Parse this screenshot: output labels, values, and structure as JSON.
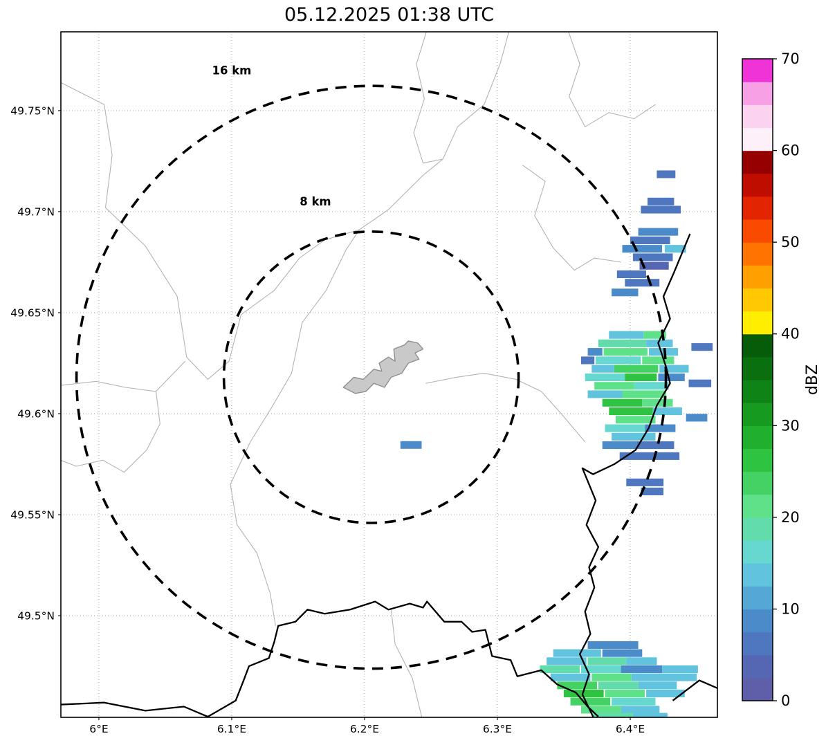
{
  "title": "05.12.2025 01:38 UTC",
  "map": {
    "extent": {
      "lon_min": 5.9714,
      "lon_max": 6.4656,
      "lat_min": 49.4497,
      "lat_max": 49.789
    },
    "x_ticks": [
      {
        "lon": 6.0,
        "label": "6°E"
      },
      {
        "lon": 6.1,
        "label": "6.1°E"
      },
      {
        "lon": 6.2,
        "label": "6.2°E"
      },
      {
        "lon": 6.3,
        "label": "6.3°E"
      },
      {
        "lon": 6.4,
        "label": "6.4°E"
      }
    ],
    "y_ticks": [
      {
        "lat": 49.5,
        "label": "49.5°N"
      },
      {
        "lat": 49.55,
        "label": "49.55°N"
      },
      {
        "lat": 49.6,
        "label": "49.6°N"
      },
      {
        "lat": 49.65,
        "label": "49.65°N"
      },
      {
        "lat": 49.7,
        "label": "49.7°N"
      },
      {
        "lat": 49.75,
        "label": "49.75°N"
      }
    ],
    "range_rings": {
      "center": {
        "lon": 6.205,
        "lat": 49.618
      },
      "items": [
        {
          "radius_km": 16,
          "label": "16 km",
          "label_lon": 6.1,
          "label_lat": 49.768
        },
        {
          "radius_km": 8,
          "label": "8 km",
          "label_lon": 6.163,
          "label_lat": 49.703
        }
      ]
    },
    "city_outline": [
      [
        6.184,
        49.613
      ],
      [
        6.192,
        49.618
      ],
      [
        6.199,
        49.617
      ],
      [
        6.207,
        49.622
      ],
      [
        6.213,
        49.621
      ],
      [
        6.211,
        49.625
      ],
      [
        6.218,
        49.628
      ],
      [
        6.223,
        49.626
      ],
      [
        6.222,
        49.632
      ],
      [
        6.23,
        49.634
      ],
      [
        6.233,
        49.636
      ],
      [
        6.24,
        49.635
      ],
      [
        6.244,
        49.632
      ],
      [
        6.238,
        49.63
      ],
      [
        6.241,
        49.627
      ],
      [
        6.233,
        49.625
      ],
      [
        6.228,
        49.62
      ],
      [
        6.22,
        49.618
      ],
      [
        6.215,
        49.613
      ],
      [
        6.207,
        49.615
      ],
      [
        6.201,
        49.611
      ],
      [
        6.193,
        49.61
      ]
    ],
    "country_borders": [
      [
        [
          6.445,
          49.689
        ],
        [
          6.433,
          49.67
        ],
        [
          6.425,
          49.658
        ],
        [
          6.43,
          49.647
        ],
        [
          6.421,
          49.635
        ],
        [
          6.427,
          49.623
        ],
        [
          6.43,
          49.615
        ],
        [
          6.42,
          49.604
        ],
        [
          6.414,
          49.593
        ],
        [
          6.404,
          49.582
        ],
        [
          6.388,
          49.575
        ],
        [
          6.372,
          49.57
        ],
        [
          6.364,
          49.573
        ],
        [
          6.369,
          49.565
        ],
        [
          6.374,
          49.557
        ],
        [
          6.367,
          49.545
        ],
        [
          6.376,
          49.534
        ],
        [
          6.369,
          49.524
        ],
        [
          6.373,
          49.514
        ],
        [
          6.366,
          49.502
        ],
        [
          6.37,
          49.491
        ],
        [
          6.362,
          49.481
        ],
        [
          6.369,
          49.471
        ],
        [
          6.364,
          49.461
        ],
        [
          6.372,
          49.45
        ],
        [
          6.369,
          49.442
        ]
      ],
      [
        [
          5.971,
          49.456
        ],
        [
          6.004,
          49.457
        ],
        [
          6.035,
          49.453
        ],
        [
          6.064,
          49.455
        ],
        [
          6.082,
          49.45
        ],
        [
          6.103,
          49.458
        ],
        [
          6.109,
          49.468
        ],
        [
          6.113,
          49.475
        ],
        [
          6.128,
          49.479
        ],
        [
          6.132,
          49.487
        ],
        [
          6.135,
          49.495
        ],
        [
          6.148,
          49.497
        ],
        [
          6.157,
          49.503
        ],
        [
          6.17,
          49.501
        ],
        [
          6.189,
          49.503
        ],
        [
          6.208,
          49.507
        ],
        [
          6.218,
          49.503
        ],
        [
          6.234,
          49.506
        ],
        [
          6.244,
          49.504
        ],
        [
          6.247,
          49.507
        ],
        [
          6.26,
          49.497
        ],
        [
          6.273,
          49.497
        ],
        [
          6.281,
          49.492
        ],
        [
          6.291,
          49.493
        ],
        [
          6.296,
          49.48
        ],
        [
          6.31,
          49.478
        ],
        [
          6.315,
          49.47
        ],
        [
          6.333,
          49.473
        ],
        [
          6.345,
          49.466
        ],
        [
          6.359,
          49.462
        ],
        [
          6.368,
          49.455
        ],
        [
          6.376,
          49.45
        ]
      ],
      [
        [
          6.432,
          49.458
        ],
        [
          6.452,
          49.468
        ],
        [
          6.466,
          49.464
        ]
      ]
    ],
    "admin_borders": [
      [
        [
          5.971,
          49.764
        ],
        [
          6.004,
          49.753
        ],
        [
          6.01,
          49.728
        ],
        [
          6.005,
          49.702
        ],
        [
          6.035,
          49.683
        ],
        [
          6.059,
          49.658
        ],
        [
          6.066,
          49.628
        ],
        [
          6.082,
          49.617
        ],
        [
          6.098,
          49.626
        ],
        [
          6.107,
          49.649
        ],
        [
          6.132,
          49.661
        ],
        [
          6.151,
          49.677
        ],
        [
          6.17,
          49.686
        ],
        [
          6.196,
          49.691
        ],
        [
          6.218,
          49.701
        ],
        [
          6.244,
          49.718
        ],
        [
          6.259,
          49.726
        ],
        [
          6.27,
          49.742
        ],
        [
          6.29,
          49.753
        ],
        [
          6.302,
          49.773
        ],
        [
          6.309,
          49.79
        ]
      ],
      [
        [
          6.247,
          49.79
        ],
        [
          6.239,
          49.773
        ],
        [
          6.245,
          49.756
        ],
        [
          6.237,
          49.739
        ],
        [
          6.244,
          49.724
        ],
        [
          6.259,
          49.726
        ]
      ],
      [
        [
          5.971,
          49.614
        ],
        [
          5.998,
          49.616
        ],
        [
          6.02,
          49.613
        ],
        [
          6.043,
          49.611
        ],
        [
          6.065,
          49.626
        ]
      ],
      [
        [
          6.043,
          49.611
        ],
        [
          6.046,
          49.595
        ],
        [
          6.036,
          49.582
        ],
        [
          6.019,
          49.571
        ],
        [
          6.003,
          49.577
        ],
        [
          5.983,
          49.574
        ],
        [
          5.971,
          49.577
        ]
      ],
      [
        [
          6.196,
          49.691
        ],
        [
          6.186,
          49.681
        ],
        [
          6.171,
          49.661
        ],
        [
          6.153,
          49.645
        ],
        [
          6.145,
          49.62
        ],
        [
          6.13,
          49.603
        ],
        [
          6.114,
          49.586
        ],
        [
          6.099,
          49.565
        ],
        [
          6.104,
          49.545
        ],
        [
          6.119,
          49.531
        ],
        [
          6.129,
          49.511
        ],
        [
          6.133,
          49.495
        ]
      ],
      [
        [
          6.246,
          49.615
        ],
        [
          6.269,
          49.618
        ],
        [
          6.29,
          49.62
        ],
        [
          6.314,
          49.617
        ],
        [
          6.333,
          49.611
        ],
        [
          6.348,
          49.6
        ],
        [
          6.366,
          49.586
        ]
      ],
      [
        [
          6.319,
          49.723
        ],
        [
          6.336,
          49.715
        ],
        [
          6.328,
          49.698
        ],
        [
          6.342,
          49.682
        ],
        [
          6.358,
          49.671
        ],
        [
          6.373,
          49.677
        ],
        [
          6.393,
          49.675
        ]
      ],
      [
        [
          6.353,
          49.79
        ],
        [
          6.362,
          49.773
        ],
        [
          6.354,
          49.757
        ],
        [
          6.366,
          49.742
        ],
        [
          6.384,
          49.749
        ],
        [
          6.403,
          49.746
        ],
        [
          6.419,
          49.753
        ]
      ],
      [
        [
          6.22,
          49.503
        ],
        [
          6.223,
          49.486
        ],
        [
          6.236,
          49.469
        ],
        [
          6.243,
          49.45
        ]
      ]
    ]
  },
  "colorbar": {
    "label": "dBZ",
    "vmin": 0,
    "vmax": 70,
    "step": 2.5,
    "tick_values": [
      0,
      10,
      20,
      30,
      40,
      50,
      60,
      70
    ],
    "colors": [
      "#5f5ea9",
      "#5567b3",
      "#4e77c0",
      "#4b8bca",
      "#55a7d6",
      "#61c3de",
      "#66d8d0",
      "#62dcaa",
      "#5fe189",
      "#45d264",
      "#2fc342",
      "#20b02e",
      "#169a20",
      "#0e8416",
      "#0a6f0e",
      "#075c09",
      "#ffee00",
      "#ffc800",
      "#ff9f00",
      "#ff7400",
      "#f94a00",
      "#e32400",
      "#bf0e00",
      "#970000",
      "#fdf0f9",
      "#fbd2f0",
      "#f7a0e6",
      "#ef33d6"
    ]
  },
  "radar": {
    "cell_height_deg": 0.0038,
    "cells": [
      [
        6.42,
        49.7185,
        0.014,
        7
      ],
      [
        6.413,
        49.705,
        0.02,
        7
      ],
      [
        6.408,
        49.701,
        0.03,
        7
      ],
      [
        6.406,
        49.69,
        0.03,
        8
      ],
      [
        6.4,
        49.6858,
        0.03,
        7
      ],
      [
        6.394,
        49.6816,
        0.03,
        8
      ],
      [
        6.426,
        49.6816,
        0.016,
        13
      ],
      [
        6.402,
        49.6774,
        0.03,
        7
      ],
      [
        6.407,
        49.6732,
        0.022,
        4
      ],
      [
        6.39,
        49.669,
        0.022,
        7
      ],
      [
        6.396,
        49.6648,
        0.026,
        5
      ],
      [
        6.386,
        49.66,
        0.02,
        8
      ],
      [
        6.384,
        49.639,
        0.026,
        14
      ],
      [
        6.41,
        49.639,
        0.017,
        20
      ],
      [
        6.376,
        49.6348,
        0.036,
        19
      ],
      [
        6.412,
        49.6348,
        0.02,
        13
      ],
      [
        6.368,
        49.6306,
        0.011,
        8
      ],
      [
        6.38,
        49.6306,
        0.033,
        21
      ],
      [
        6.414,
        49.6306,
        0.022,
        14
      ],
      [
        6.363,
        49.6264,
        0.01,
        5
      ],
      [
        6.374,
        49.6264,
        0.034,
        15
      ],
      [
        6.409,
        49.6264,
        0.024,
        22
      ],
      [
        6.371,
        49.6222,
        0.017,
        13
      ],
      [
        6.388,
        49.6222,
        0.033,
        24
      ],
      [
        6.422,
        49.6222,
        0.022,
        14
      ],
      [
        6.366,
        49.618,
        0.03,
        16
      ],
      [
        6.396,
        49.618,
        0.024,
        26
      ],
      [
        6.421,
        49.618,
        0.02,
        9
      ],
      [
        6.373,
        49.6138,
        0.03,
        20
      ],
      [
        6.403,
        49.6138,
        0.026,
        15
      ],
      [
        6.368,
        49.6096,
        0.026,
        13
      ],
      [
        6.394,
        49.6096,
        0.033,
        22
      ],
      [
        6.379,
        49.6054,
        0.03,
        25
      ],
      [
        6.409,
        49.6054,
        0.023,
        20
      ],
      [
        6.384,
        49.6012,
        0.033,
        27
      ],
      [
        6.417,
        49.6012,
        0.022,
        14
      ],
      [
        6.389,
        49.597,
        0.03,
        22
      ],
      [
        6.381,
        49.5928,
        0.03,
        15
      ],
      [
        6.411,
        49.5928,
        0.023,
        8
      ],
      [
        6.386,
        49.5886,
        0.033,
        13
      ],
      [
        6.379,
        49.5844,
        0.026,
        8
      ],
      [
        6.405,
        49.5844,
        0.028,
        5
      ],
      [
        6.392,
        49.579,
        0.045,
        7
      ],
      [
        6.397,
        49.566,
        0.028,
        7
      ],
      [
        6.408,
        49.5615,
        0.017,
        5
      ],
      [
        6.446,
        49.633,
        0.016,
        7
      ],
      [
        6.444,
        49.615,
        0.017,
        5
      ],
      [
        6.442,
        49.598,
        0.016,
        8
      ],
      [
        6.227,
        49.5845,
        0.016,
        8
      ],
      [
        6.368,
        49.4855,
        0.038,
        8
      ],
      [
        6.342,
        49.4815,
        0.036,
        13
      ],
      [
        6.379,
        49.4815,
        0.03,
        8
      ],
      [
        6.337,
        49.4775,
        0.03,
        14
      ],
      [
        6.368,
        49.4775,
        0.029,
        18
      ],
      [
        6.397,
        49.4775,
        0.023,
        13
      ],
      [
        6.332,
        49.4735,
        0.03,
        19
      ],
      [
        6.363,
        49.4735,
        0.03,
        15
      ],
      [
        6.393,
        49.4735,
        0.031,
        8
      ],
      [
        6.424,
        49.4735,
        0.027,
        13
      ],
      [
        6.34,
        49.4695,
        0.03,
        14
      ],
      [
        6.371,
        49.4695,
        0.03,
        21
      ],
      [
        6.401,
        49.4695,
        0.049,
        13
      ],
      [
        6.345,
        49.4655,
        0.03,
        24
      ],
      [
        6.376,
        49.4655,
        0.03,
        19
      ],
      [
        6.406,
        49.4655,
        0.029,
        14
      ],
      [
        6.35,
        49.4615,
        0.03,
        27
      ],
      [
        6.381,
        49.4615,
        0.03,
        21
      ],
      [
        6.412,
        49.4615,
        0.029,
        13
      ],
      [
        6.355,
        49.4575,
        0.03,
        23
      ],
      [
        6.386,
        49.4575,
        0.033,
        15
      ],
      [
        6.363,
        49.4535,
        0.03,
        20
      ],
      [
        6.393,
        49.4535,
        0.029,
        13
      ],
      [
        6.372,
        49.45,
        0.03,
        18
      ],
      [
        6.402,
        49.45,
        0.026,
        13
      ]
    ]
  }
}
